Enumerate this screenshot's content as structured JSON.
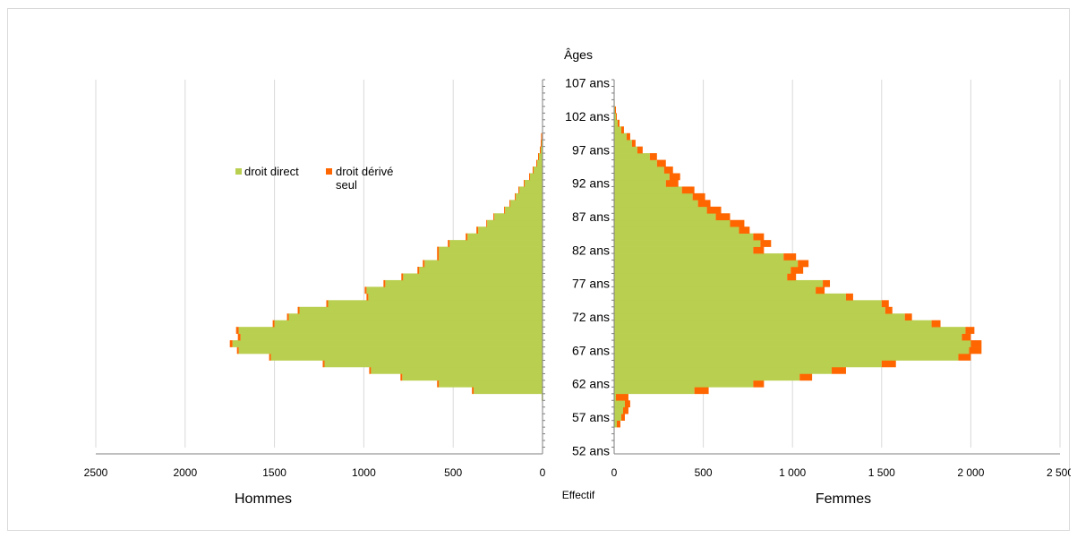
{
  "chart_data": {
    "type": "bar",
    "orientation": "horizontal",
    "layout": "population-pyramid",
    "stacked": true,
    "center_label": "Âges",
    "xlabel": "Effectif",
    "panels": [
      {
        "name": "Hommes",
        "side": "left",
        "xlim": [
          0,
          2500
        ],
        "ticks": [
          0,
          500,
          1000,
          1500,
          2000,
          2500
        ],
        "tick_labels": [
          "0",
          "500",
          "1000",
          "1500",
          "2000",
          "2500"
        ]
      },
      {
        "name": "Femmes",
        "side": "right",
        "xlim": [
          0,
          2500
        ],
        "ticks": [
          0,
          500,
          1000,
          1500,
          2000,
          2500
        ],
        "tick_labels": [
          "0",
          "500",
          "1 000",
          "1 500",
          "2 000",
          "2 500"
        ]
      }
    ],
    "age_ticks": [
      52,
      57,
      62,
      67,
      72,
      77,
      82,
      87,
      92,
      97,
      102,
      107
    ],
    "age_tick_labels": [
      "52 ans",
      "57 ans",
      "62 ans",
      "67 ans",
      "72 ans",
      "77 ans",
      "82 ans",
      "87 ans",
      "92 ans",
      "97 ans",
      "102 ans",
      "107 ans"
    ],
    "ages": [
      52,
      53,
      54,
      55,
      56,
      57,
      58,
      59,
      60,
      61,
      62,
      63,
      64,
      65,
      66,
      67,
      68,
      69,
      70,
      71,
      72,
      73,
      74,
      75,
      76,
      77,
      78,
      79,
      80,
      81,
      82,
      83,
      84,
      85,
      86,
      87,
      88,
      89,
      90,
      91,
      92,
      93,
      94,
      95,
      96,
      97,
      98,
      99,
      100,
      101,
      102,
      103,
      104,
      105,
      106,
      107
    ],
    "series": [
      {
        "name": "droit direct",
        "color": "#b9cf4f",
        "men": [
          0,
          0,
          0,
          0,
          0,
          0,
          0,
          0,
          5,
          385,
          580,
          785,
          960,
          1220,
          1520,
          1700,
          1735,
          1690,
          1700,
          1500,
          1420,
          1360,
          1200,
          975,
          985,
          880,
          780,
          690,
          660,
          580,
          580,
          520,
          420,
          360,
          310,
          270,
          210,
          180,
          150,
          130,
          100,
          70,
          50,
          30,
          20,
          10,
          5,
          3,
          0,
          0,
          0,
          0,
          0,
          0,
          0,
          0
        ],
        "women": [
          0,
          0,
          0,
          0,
          15,
          40,
          50,
          60,
          10,
          450,
          780,
          1040,
          1220,
          1500,
          1930,
          1990,
          2000,
          1950,
          1970,
          1780,
          1630,
          1520,
          1500,
          1300,
          1130,
          1170,
          970,
          990,
          1030,
          950,
          780,
          820,
          780,
          700,
          650,
          570,
          520,
          470,
          440,
          380,
          290,
          310,
          280,
          240,
          200,
          130,
          100,
          70,
          40,
          20,
          10,
          5,
          3,
          0,
          0,
          0
        ]
      },
      {
        "name": "droit dérivé seul",
        "color": "#ff6600",
        "men": [
          0,
          0,
          0,
          0,
          0,
          0,
          0,
          0,
          0,
          10,
          10,
          10,
          10,
          10,
          10,
          10,
          15,
          15,
          15,
          10,
          10,
          10,
          10,
          10,
          10,
          10,
          10,
          10,
          10,
          10,
          10,
          10,
          10,
          10,
          5,
          5,
          5,
          5,
          5,
          5,
          5,
          5,
          5,
          5,
          5,
          5,
          5,
          5,
          0,
          0,
          0,
          0,
          0,
          0,
          0,
          0
        ],
        "women": [
          0,
          0,
          0,
          0,
          20,
          20,
          30,
          30,
          70,
          80,
          60,
          70,
          80,
          80,
          70,
          70,
          60,
          50,
          50,
          50,
          40,
          40,
          40,
          40,
          50,
          40,
          50,
          70,
          60,
          70,
          60,
          60,
          60,
          60,
          80,
          80,
          80,
          70,
          70,
          70,
          70,
          60,
          50,
          50,
          40,
          30,
          20,
          20,
          15,
          10,
          5,
          5,
          0,
          0,
          0,
          0
        ]
      }
    ],
    "legend": {
      "placement": "upper-left of right panel",
      "items": [
        "droit direct",
        "droit dérivé seul"
      ]
    },
    "grid": true
  }
}
